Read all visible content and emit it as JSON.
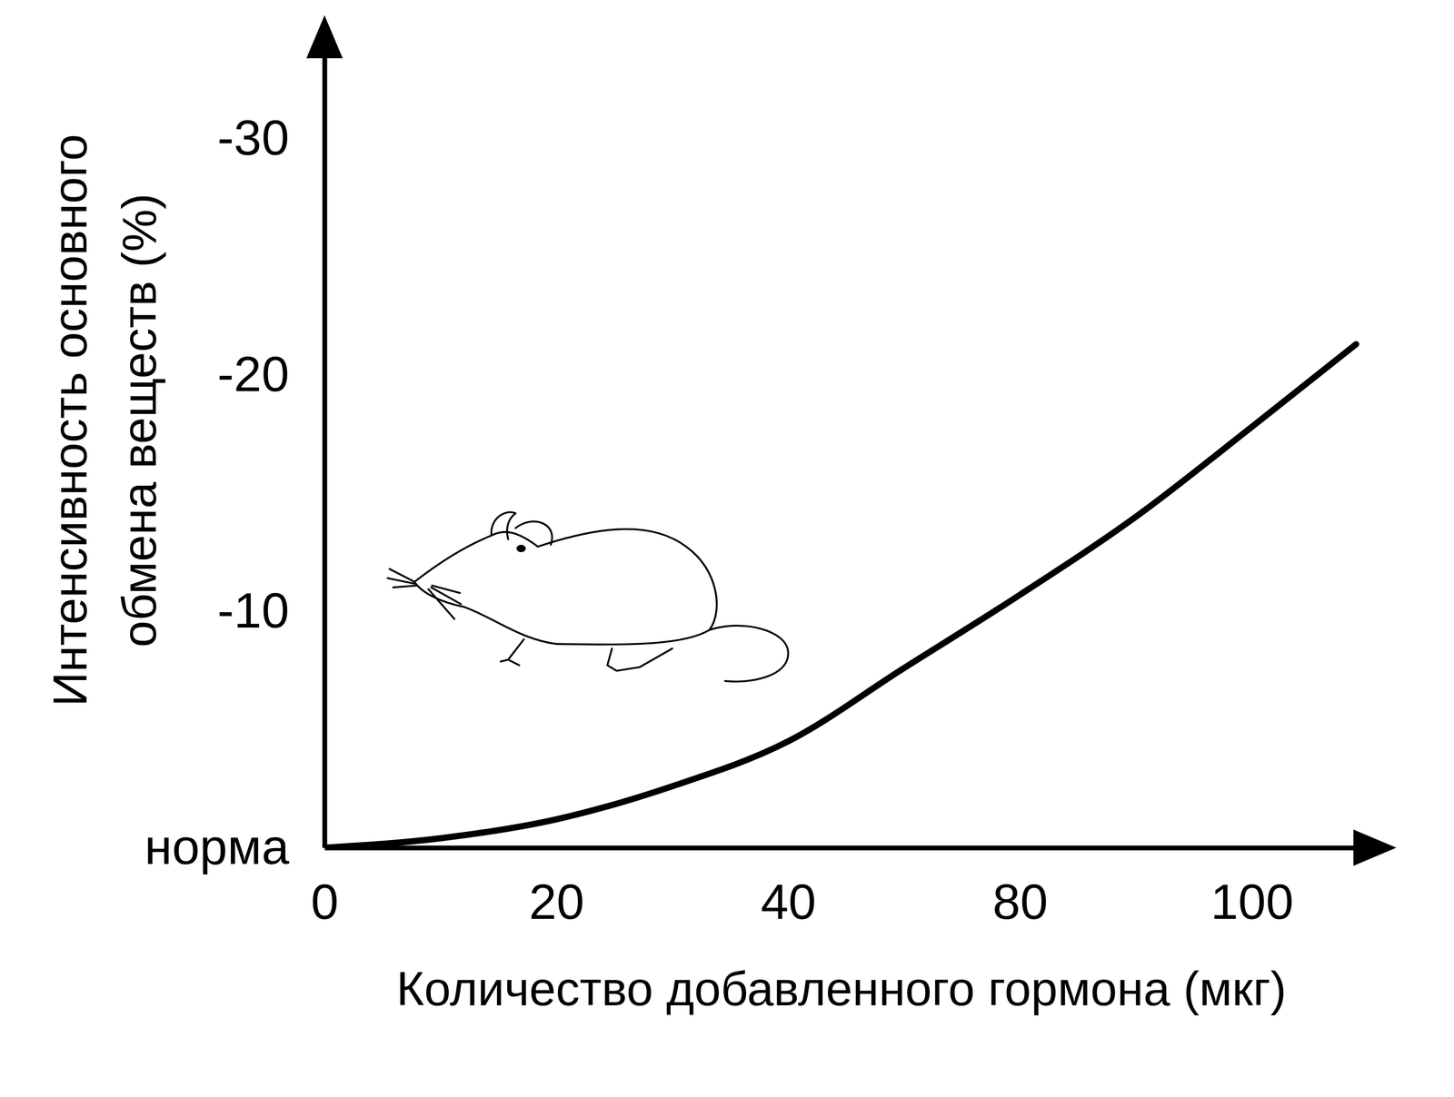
{
  "chart_data": {
    "type": "line",
    "x_label": "Количество добавленного гормона (мкг)",
    "y_label": "Интенсивность основного обмена веществ (%)",
    "x": [
      0,
      10,
      20,
      30,
      40,
      60,
      80,
      90,
      100,
      109
    ],
    "values": [
      0,
      -0.4,
      -1.2,
      -2.6,
      -4.5,
      -7.6,
      -10.7,
      -14.0,
      -17.8,
      -21.3
    ],
    "color": "#000000",
    "xlim": [
      0,
      110
    ],
    "xticks": [
      0,
      20,
      40,
      80,
      100
    ],
    "ylim": [
      0,
      -34
    ],
    "yticks": [
      {
        "value": 0,
        "label": "норма"
      },
      -10,
      -20,
      -30
    ],
    "grid": false
  }
}
